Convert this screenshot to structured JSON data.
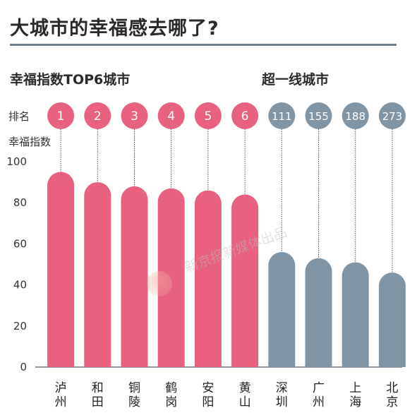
{
  "title": "大城市的幸福感去哪了?",
  "subtitle_left": "幸福指数TOP6城市",
  "subtitle_right": "超一线城市",
  "rank_label": "排名",
  "ylabel": "幸福指数",
  "watermark_text": "新京报新媒体出品",
  "colors": {
    "top6": "#e8617f",
    "tier1": "#7f95a5",
    "axis": "#6d7f8d",
    "rank_text": "#ffffff"
  },
  "chart_data": {
    "type": "bar",
    "title": "大城市的幸福感去哪了?",
    "ylabel": "幸福指数",
    "ylim": [
      0,
      100
    ],
    "yticks": [
      0,
      20,
      40,
      60,
      80,
      100
    ],
    "categories": [
      "泸州",
      "和田",
      "铜陵",
      "鹤岗",
      "安阳",
      "黄山",
      "深圳",
      "广州",
      "上海",
      "北京"
    ],
    "ranks": [
      "1",
      "2",
      "3",
      "4",
      "5",
      "6",
      "111",
      "155",
      "188",
      "273"
    ],
    "values": [
      95,
      90,
      88,
      87,
      86,
      84,
      56,
      53,
      51,
      46
    ],
    "groups": [
      "幸福指数TOP6城市",
      "幸福指数TOP6城市",
      "幸福指数TOP6城市",
      "幸福指数TOP6城市",
      "幸福指数TOP6城市",
      "幸福指数TOP6城市",
      "超一线城市",
      "超一线城市",
      "超一线城市",
      "超一线城市"
    ]
  }
}
